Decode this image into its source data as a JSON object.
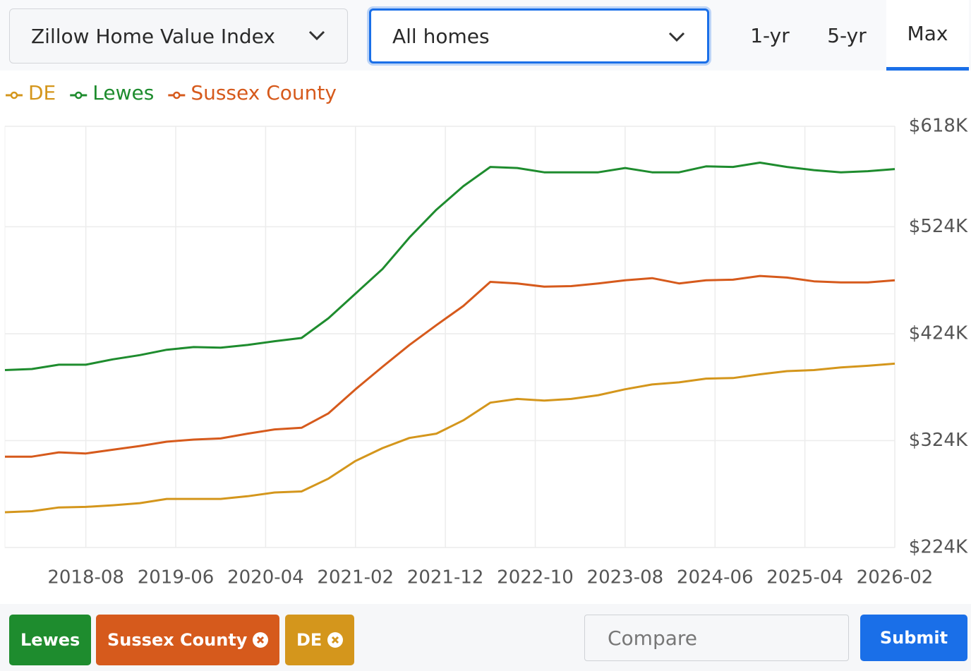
{
  "ui": {
    "metric_dropdown": "Zillow Home Value Index",
    "home_type_dropdown": "All homes",
    "tabs": [
      "1-yr",
      "5-yr",
      "Max"
    ],
    "active_tab_index": 2,
    "chips": [
      {
        "label": "Lewes",
        "color": "#1e8c2e",
        "removable": false
      },
      {
        "label": "Sussex County",
        "color": "#d65a1c",
        "removable": true
      },
      {
        "label": "DE",
        "color": "#d4961c",
        "removable": true
      }
    ],
    "compare_placeholder": "Compare",
    "submit_button": "Submit"
  },
  "chart_data": {
    "type": "line",
    "x": [
      "2017-11",
      "2018-02",
      "2018-05",
      "2018-08",
      "2018-11",
      "2019-02",
      "2019-05",
      "2019-08",
      "2019-11",
      "2020-02",
      "2020-05",
      "2020-08",
      "2020-11",
      "2021-02",
      "2021-05",
      "2021-08",
      "2021-11",
      "2022-02",
      "2022-05",
      "2022-08",
      "2022-11",
      "2023-02",
      "2023-05",
      "2023-08",
      "2023-11",
      "2024-02",
      "2024-05",
      "2024-08",
      "2024-11",
      "2025-02",
      "2025-05",
      "2025-08",
      "2025-11",
      "2026-02"
    ],
    "series": [
      {
        "name": "DE",
        "color": "#d4961c",
        "values": [
          257000,
          258000,
          261500,
          262000,
          263500,
          265500,
          269500,
          269500,
          269500,
          272000,
          275500,
          276500,
          288500,
          305000,
          317000,
          326500,
          330500,
          343000,
          359500,
          363000,
          361500,
          363000,
          366500,
          372000,
          376500,
          378500,
          382000,
          382500,
          386000,
          389000,
          390000,
          392500,
          394000,
          396000
        ]
      },
      {
        "name": "Lewes",
        "color": "#1e8c2e",
        "values": [
          390000,
          391000,
          395000,
          395000,
          400000,
          404000,
          409000,
          411500,
          411000,
          413500,
          417000,
          420000,
          438500,
          461500,
          484500,
          514000,
          540000,
          562000,
          580000,
          579000,
          575000,
          575000,
          575000,
          579000,
          575000,
          575000,
          580500,
          580000,
          584000,
          580000,
          577000,
          575000,
          576000,
          578000
        ]
      },
      {
        "name": "Sussex County",
        "color": "#d65a1c",
        "values": [
          309000,
          309000,
          313000,
          312000,
          315500,
          319000,
          323000,
          325000,
          326000,
          330500,
          334500,
          336000,
          349500,
          372000,
          393000,
          413500,
          432000,
          450000,
          472500,
          471000,
          468000,
          468500,
          471000,
          474000,
          476000,
          471000,
          474000,
          474500,
          478000,
          476500,
          473000,
          472000,
          472000,
          474000
        ]
      }
    ],
    "xlim": [
      "2017-11",
      "2026-02"
    ],
    "xticks": [
      "2018-08",
      "2019-06",
      "2020-04",
      "2021-02",
      "2021-12",
      "2022-10",
      "2023-08",
      "2024-06",
      "2025-04",
      "2026-02"
    ],
    "ylim": [
      224000,
      618000
    ],
    "yticks": [
      {
        "value": 224000,
        "label": "$224K"
      },
      {
        "value": 324000,
        "label": "$324K"
      },
      {
        "value": 424000,
        "label": "$424K"
      },
      {
        "value": 524000,
        "label": "$524K"
      },
      {
        "value": 618000,
        "label": "$618K"
      }
    ],
    "grid": true,
    "legend": "top-left"
  }
}
